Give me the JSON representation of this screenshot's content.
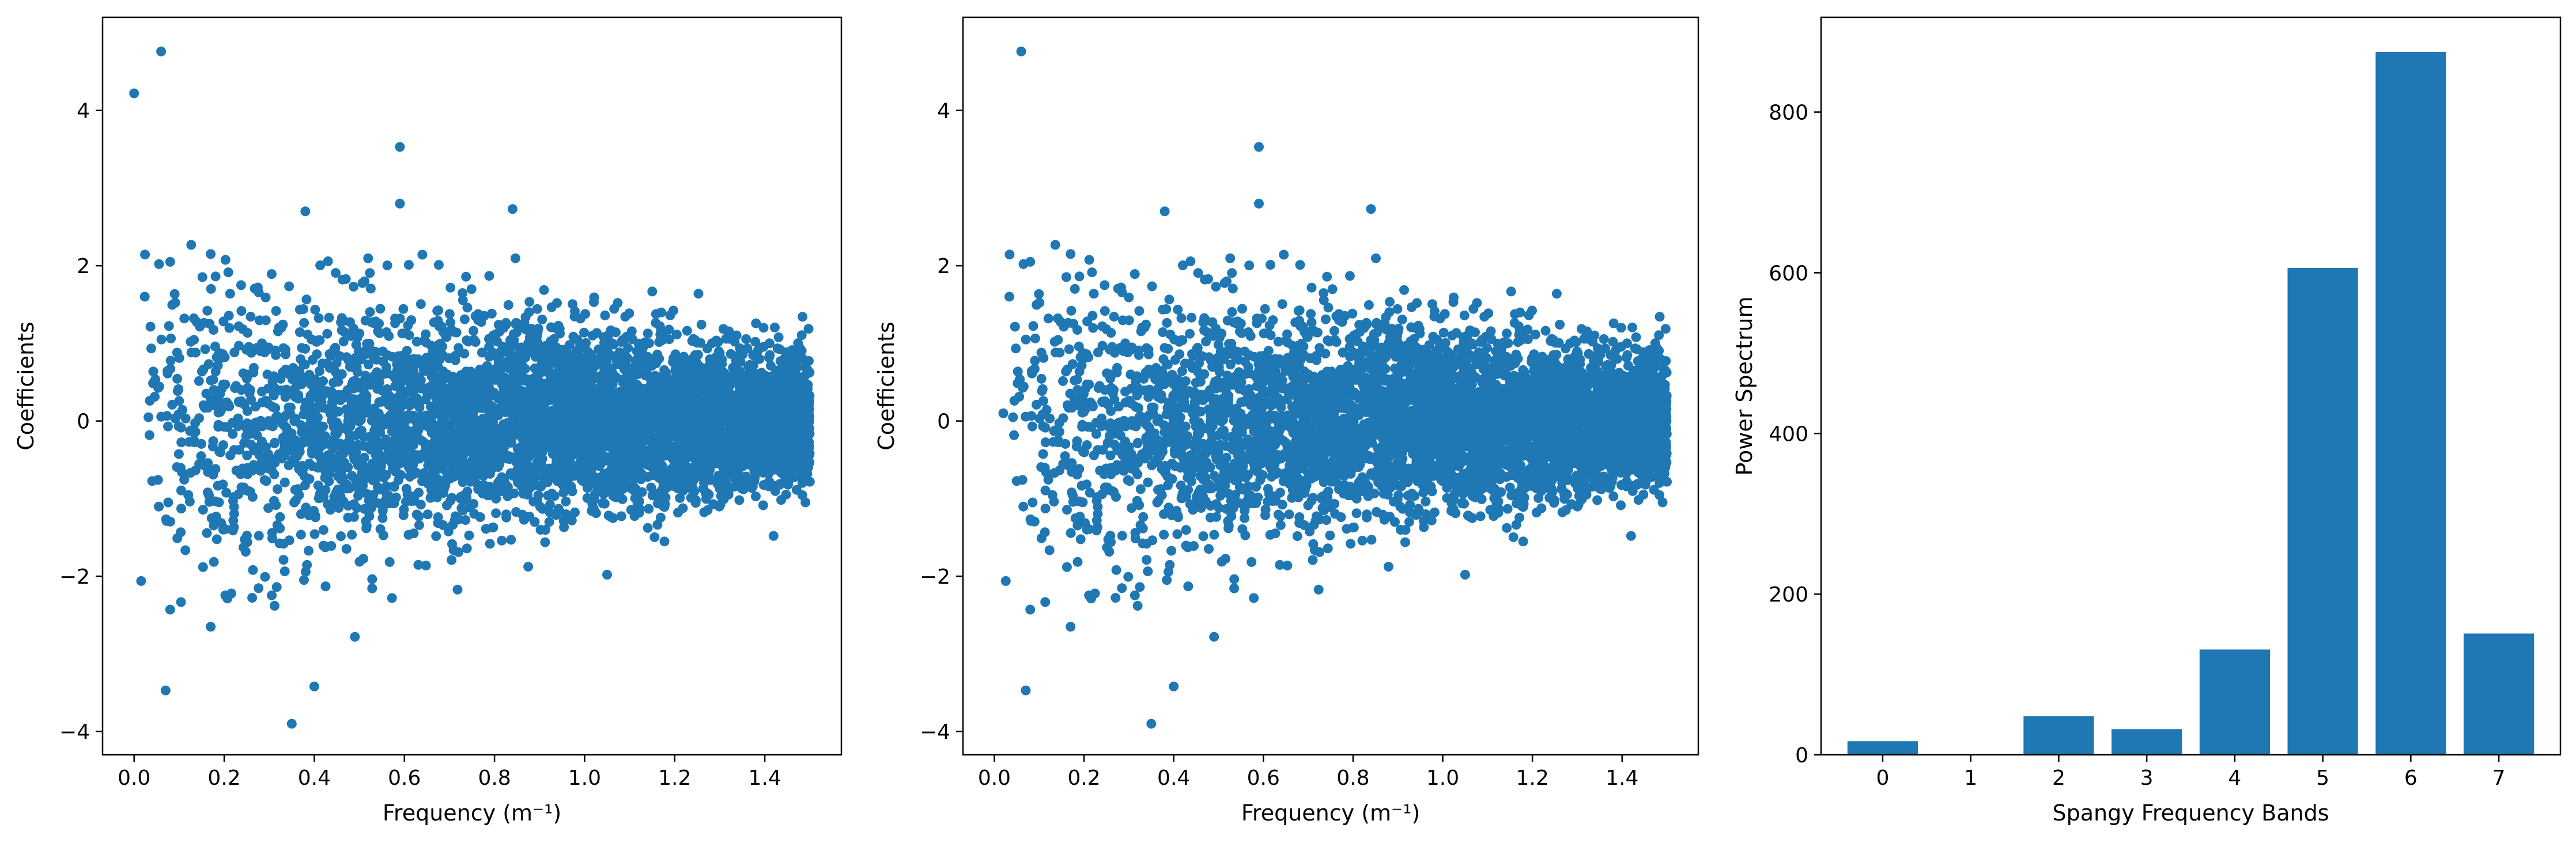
{
  "figure": {
    "background": "#ffffff",
    "marker_color": "#1f77b4"
  },
  "chart_data": [
    {
      "type": "scatter",
      "title": "",
      "xlabel": "Frequency (m⁻¹)",
      "ylabel": "Coefficients",
      "xlim": [
        -0.07,
        1.57
      ],
      "ylim": [
        -4.3,
        5.2
      ],
      "xticks": [
        0.0,
        0.2,
        0.4,
        0.6,
        0.8,
        1.0,
        1.2,
        1.4
      ],
      "xtick_labels": [
        "0.0",
        "0.2",
        "0.4",
        "0.6",
        "0.8",
        "1.0",
        "1.2",
        "1.4"
      ],
      "yticks": [
        -4,
        -2,
        0,
        2,
        4
      ],
      "ytick_labels": [
        "−4",
        "−2",
        "0",
        "2",
        "4"
      ],
      "color": "#1f77b4",
      "grid": false,
      "notable_points": [
        {
          "x": 0.0,
          "y": 4.22
        },
        {
          "x": 0.06,
          "y": 4.76
        },
        {
          "x": 0.07,
          "y": -3.47
        },
        {
          "x": 0.35,
          "y": -3.9
        },
        {
          "x": 0.4,
          "y": -3.42
        },
        {
          "x": 0.59,
          "y": 3.53
        },
        {
          "x": 0.59,
          "y": 2.8
        },
        {
          "x": 0.38,
          "y": 2.7
        },
        {
          "x": 0.84,
          "y": 2.73
        },
        {
          "x": 0.08,
          "y": 2.05
        },
        {
          "x": 0.17,
          "y": 2.15
        },
        {
          "x": 0.17,
          "y": -2.65
        },
        {
          "x": 0.08,
          "y": -2.43
        },
        {
          "x": 0.49,
          "y": -2.78
        },
        {
          "x": 1.05,
          "y": -1.98
        }
      ],
      "distribution": {
        "x_min": 0.0,
        "x_max": 1.5,
        "points": 5200,
        "density": "increasing with frequency",
        "spread_low_frequency": 1.0,
        "spread_high_frequency": 0.38
      }
    },
    {
      "type": "scatter",
      "title": "",
      "xlabel": "Frequency (m⁻¹)",
      "ylabel": "Coefficients",
      "xlim": [
        -0.07,
        1.57
      ],
      "ylim": [
        -4.3,
        5.2
      ],
      "xticks": [
        0.0,
        0.2,
        0.4,
        0.6,
        0.8,
        1.0,
        1.2,
        1.4
      ],
      "xtick_labels": [
        "0.0",
        "0.2",
        "0.4",
        "0.6",
        "0.8",
        "1.0",
        "1.2",
        "1.4"
      ],
      "yticks": [
        -4,
        -2,
        0,
        2,
        4
      ],
      "ytick_labels": [
        "−4",
        "−2",
        "0",
        "2",
        "4"
      ],
      "color": "#1f77b4",
      "grid": false,
      "notable_points": [
        {
          "x": 0.06,
          "y": 4.76
        },
        {
          "x": 0.07,
          "y": -3.47
        },
        {
          "x": 0.35,
          "y": -3.9
        },
        {
          "x": 0.4,
          "y": -3.42
        },
        {
          "x": 0.59,
          "y": 3.53
        },
        {
          "x": 0.59,
          "y": 2.8
        },
        {
          "x": 0.38,
          "y": 2.7
        },
        {
          "x": 0.84,
          "y": 2.73
        },
        {
          "x": 0.08,
          "y": 2.05
        },
        {
          "x": 0.17,
          "y": 2.15
        },
        {
          "x": 0.17,
          "y": -2.65
        },
        {
          "x": 0.08,
          "y": -2.43
        },
        {
          "x": 0.49,
          "y": -2.78
        },
        {
          "x": 1.05,
          "y": -1.98
        },
        {
          "x": 0.02,
          "y": 0.1
        }
      ],
      "distribution": {
        "x_min": 0.01,
        "x_max": 1.5,
        "points": 5200,
        "density": "increasing with frequency",
        "spread_low_frequency": 1.0,
        "spread_high_frequency": 0.38
      }
    },
    {
      "type": "bar",
      "title": "",
      "xlabel": "Spangy Frequency Bands",
      "ylabel": "Power Spectrum",
      "categories": [
        "0",
        "1",
        "2",
        "3",
        "4",
        "5",
        "6",
        "7"
      ],
      "values": [
        17,
        0,
        48,
        32,
        131,
        606,
        875,
        151
      ],
      "ylim": [
        0,
        918
      ],
      "yticks": [
        0,
        200,
        400,
        600,
        800
      ],
      "ytick_labels": [
        "0",
        "200",
        "400",
        "600",
        "800"
      ],
      "color": "#1f77b4",
      "grid": false
    }
  ]
}
